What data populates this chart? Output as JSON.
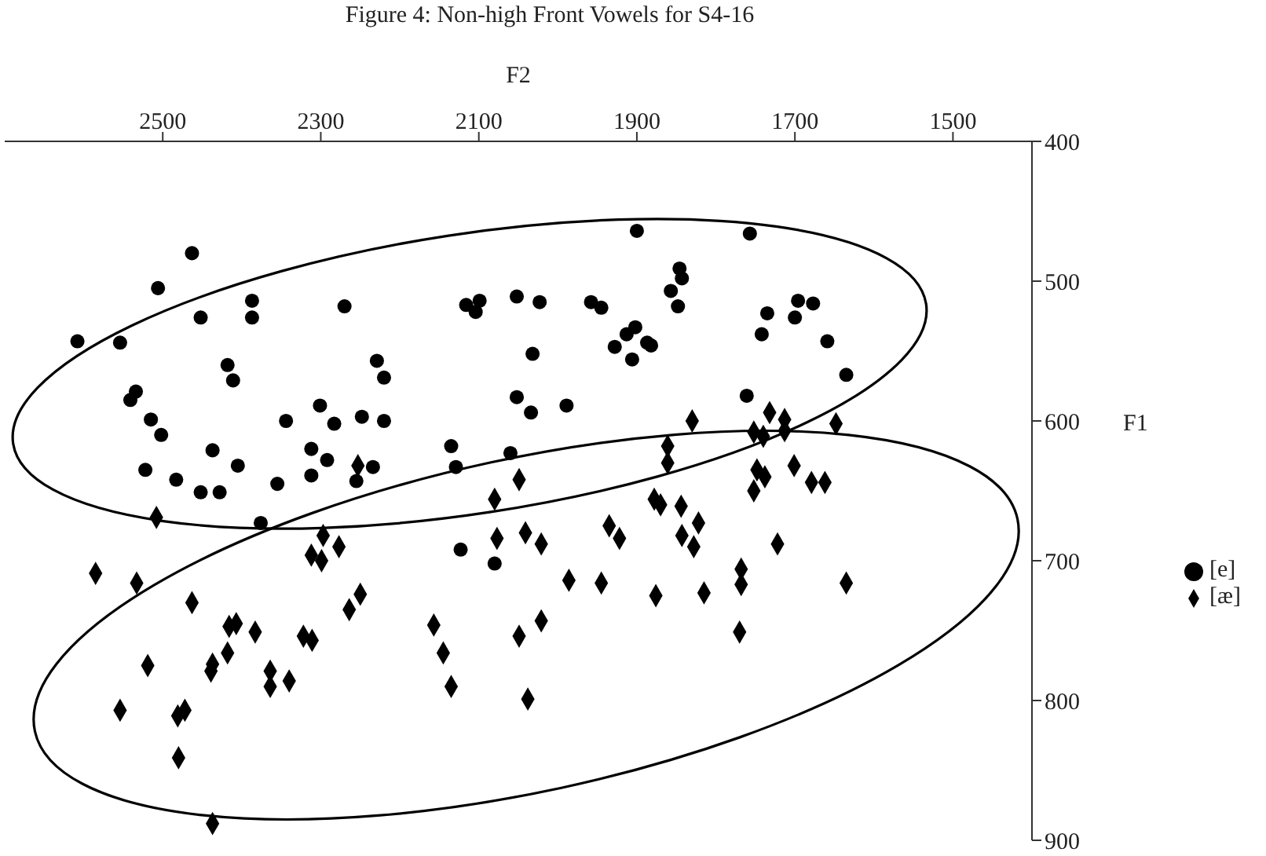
{
  "chart_data": {
    "type": "scatter",
    "title": "Figure 4: Non-high Front Vowels for S4-16",
    "xlabel": "F2",
    "ylabel": "F1",
    "xlim": [
      2700,
      1400
    ],
    "xticks": [
      2500,
      2300,
      2100,
      1900,
      1700,
      1500
    ],
    "ylim": [
      900,
      400
    ],
    "yticks": [
      400,
      500,
      600,
      700,
      800,
      900
    ],
    "grid": false,
    "legend": "right",
    "series": [
      {
        "name": "[e]",
        "color": "#000000",
        "marker": "circle",
        "x": [
          2463,
          2506,
          2608,
          2554,
          2452,
          2387,
          2387,
          2270,
          2116,
          2099,
          2104,
          2052,
          2023,
          2032,
          2418,
          2411,
          2229,
          2220,
          2534,
          2541,
          2515,
          2502,
          2301,
          2283,
          2344,
          2248,
          2220,
          2052,
          2034,
          1989,
          2135,
          2437,
          2312,
          2292,
          2060,
          2129,
          2234,
          2405,
          2522,
          2483,
          2452,
          2428,
          2355,
          2312,
          2255,
          2376,
          2123,
          2080,
          1900,
          1757,
          1846,
          1843,
          1857,
          1848,
          1958,
          1945,
          1902,
          1913,
          1928,
          1887,
          1882,
          1906,
          1696,
          1677,
          1735,
          1700,
          1742,
          1659,
          1635,
          1761
        ],
        "values": [
          480,
          505,
          543,
          544,
          526,
          514,
          526,
          518,
          517,
          514,
          522,
          511,
          515,
          552,
          560,
          571,
          557,
          569,
          579,
          585,
          599,
          610,
          589,
          602,
          600,
          597,
          600,
          583,
          594,
          589,
          618,
          621,
          620,
          628,
          623,
          633,
          633,
          632,
          635,
          642,
          651,
          651,
          645,
          639,
          643,
          673,
          692,
          702,
          464,
          466,
          491,
          498,
          507,
          518,
          515,
          519,
          533,
          538,
          547,
          544,
          546,
          556,
          514,
          516,
          523,
          526,
          538,
          543,
          567,
          582
        ]
      },
      {
        "name": "[æ]",
        "color": "#000000",
        "marker": "diamond",
        "x": [
          2253,
          2049,
          2080,
          2508,
          2297,
          2077,
          2041,
          2021,
          2312,
          2299,
          2277,
          2585,
          2533,
          1986,
          2250,
          2264,
          2463,
          2416,
          2407,
          2383,
          2322,
          2311,
          2157,
          2021,
          2049,
          2145,
          2418,
          2437,
          2439,
          2519,
          2364,
          2364,
          2340,
          2135,
          2038,
          2554,
          2472,
          2481,
          2480,
          2437,
          1830,
          1732,
          1713,
          1713,
          1648,
          1752,
          1740,
          1861,
          1861,
          1748,
          1701,
          1738,
          1752,
          1679,
          1662,
          1878,
          1870,
          1844,
          1822,
          1935,
          1922,
          1843,
          1828,
          1722,
          1945,
          1876,
          1815,
          1768,
          1768,
          1635,
          1770
        ],
        "values": [
          632,
          642,
          656,
          669,
          682,
          684,
          680,
          688,
          696,
          700,
          690,
          709,
          716,
          714,
          724,
          735,
          730,
          747,
          745,
          751,
          754,
          757,
          746,
          743,
          754,
          766,
          766,
          774,
          779,
          775,
          779,
          790,
          786,
          790,
          799,
          807,
          807,
          811,
          841,
          888,
          600,
          594,
          599,
          607,
          602,
          608,
          611,
          618,
          630,
          635,
          632,
          640,
          650,
          644,
          644,
          656,
          660,
          661,
          673,
          675,
          684,
          682,
          690,
          688,
          716,
          725,
          723,
          706,
          717,
          716,
          751
        ]
      }
    ]
  }
}
